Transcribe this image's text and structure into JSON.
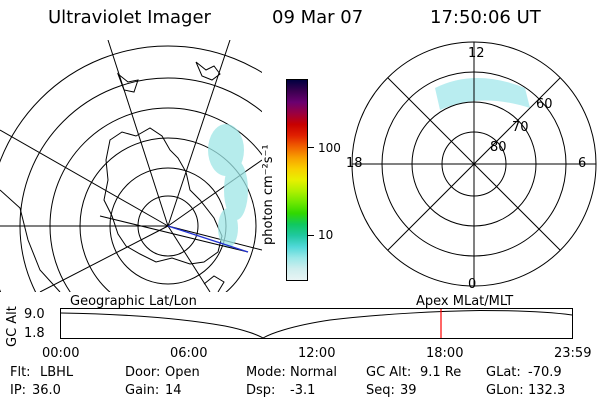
{
  "header": {
    "instrument": "Ultraviolet Imager",
    "date": "09 Mar 07",
    "time": "17:50:06 UT"
  },
  "colorbar": {
    "label": "photon cm⁻²s⁻¹",
    "ticks": [
      {
        "label": "100",
        "value": 100
      },
      {
        "label": "10",
        "value": 10
      }
    ],
    "colors": [
      "#000040",
      "#3a0050",
      "#6a0070",
      "#9a0040",
      "#c80000",
      "#e02000",
      "#f06000",
      "#f8a000",
      "#f8d000",
      "#e8f000",
      "#b0f000",
      "#70e800",
      "#30d800",
      "#10c860",
      "#20c8a0",
      "#50d8d8",
      "#9ae8e8",
      "#cfeeee",
      "#e8f4f4"
    ]
  },
  "geo_map": {
    "label": "Geographic Lat/Lon",
    "aurora_color": "#9ee6e6"
  },
  "mlt_plot": {
    "label": "Apex MLat/MLT",
    "mlt_labels": {
      "top": "12",
      "bottom": "0",
      "left": "18",
      "right": "6"
    },
    "lat_labels": [
      "60",
      "70",
      "80"
    ],
    "aurora_color": "#a8e8ec"
  },
  "altitude_strip": {
    "axis_title": "GC Alt",
    "y_labels": [
      "9.0",
      "1.8"
    ],
    "x_labels": [
      "00:00",
      "06:00",
      "12:00",
      "18:00",
      "23:59"
    ],
    "current_marker_time": "17:50",
    "marker_color": "#ff0000"
  },
  "status": {
    "row1": [
      {
        "key": "Flt:",
        "value": "LBHL"
      },
      {
        "key": "Door:",
        "value": "Open"
      },
      {
        "key": "Mode:",
        "value": "Normal"
      },
      {
        "key": "GC Alt:",
        "value": "9.1 Re"
      },
      {
        "key": "GLat:",
        "value": "-70.9"
      }
    ],
    "row2": [
      {
        "key": "IP:",
        "value": "36.0"
      },
      {
        "key": "Gain:",
        "value": "14"
      },
      {
        "key": "Dsp:",
        "value": "-3.1"
      },
      {
        "key": "Seq:",
        "value": "39"
      },
      {
        "key": "GLon:",
        "value": "132.3"
      }
    ]
  }
}
